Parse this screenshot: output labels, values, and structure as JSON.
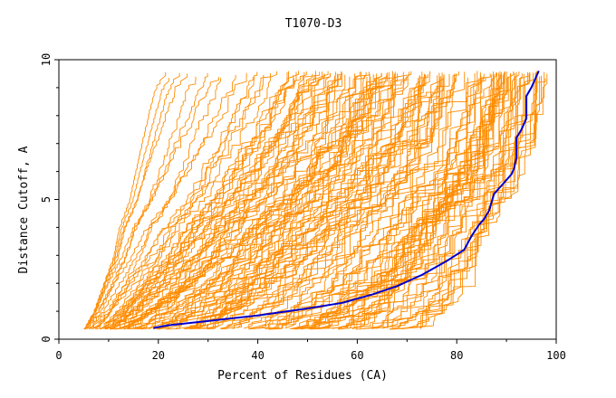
{
  "chart_data": {
    "type": "line",
    "title": "T1070-D3",
    "xlabel": "Percent of Residues (CA)",
    "ylabel": "Distance Cutoff, A",
    "xlim": [
      0,
      100
    ],
    "ylim": [
      0,
      10
    ],
    "x_ticks": [
      0,
      20,
      40,
      60,
      80,
      100
    ],
    "y_ticks": [
      0,
      5,
      10
    ],
    "grid": false,
    "legend": "none",
    "colors": {
      "models": "#ff8c00",
      "highlight": "#0000cc",
      "axis": "#000000"
    },
    "highlight_series": {
      "x": [
        19,
        22,
        30,
        40,
        50,
        57,
        63,
        68,
        73,
        78,
        81.5,
        83,
        84.5,
        85.5,
        86.5,
        87.5,
        89.5,
        91,
        91.5,
        92,
        92,
        93,
        94,
        94,
        95,
        96.5
      ],
      "y": [
        0.4,
        0.5,
        0.65,
        0.85,
        1.1,
        1.3,
        1.6,
        1.9,
        2.3,
        2.8,
        3.2,
        3.7,
        4.1,
        4.3,
        4.6,
        5.2,
        5.6,
        5.9,
        6.1,
        6.5,
        7.2,
        7.5,
        7.9,
        8.7,
        9.0,
        9.6
      ]
    },
    "model_envelope": {
      "y": [
        0.35,
        1,
        2,
        3,
        4,
        5,
        6,
        7,
        8,
        9,
        9.6
      ],
      "x_min": [
        5,
        7,
        9,
        11,
        12,
        14,
        15,
        16,
        17,
        18,
        20
      ],
      "x_max": [
        75,
        80,
        84,
        86,
        88,
        92,
        95,
        97,
        98,
        99,
        99
      ]
    },
    "model_count": 150
  }
}
